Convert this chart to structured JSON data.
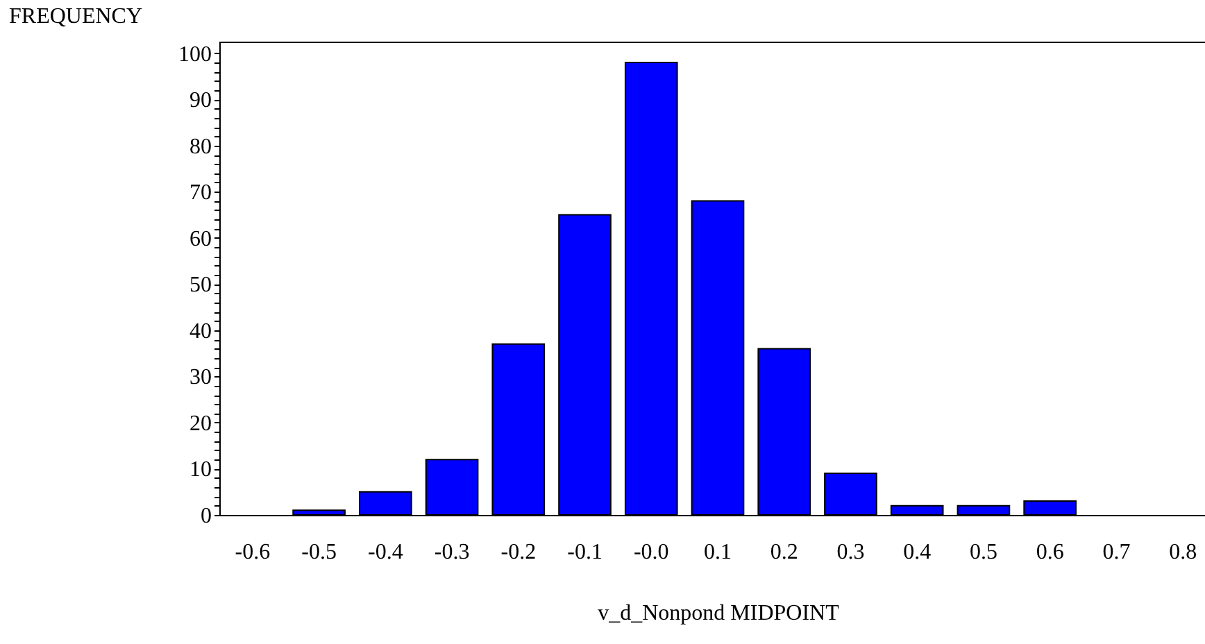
{
  "chart_data": {
    "type": "bar",
    "xlabel": "v_d_Nonpond MIDPOINT",
    "ylabel": "FREQUENCY",
    "categories": [
      "-0.6",
      "-0.5",
      "-0.4",
      "-0.3",
      "-0.2",
      "-0.1",
      "-0.0",
      "0.1",
      "0.2",
      "0.3",
      "0.4",
      "0.5",
      "0.6",
      "0.7",
      "0.8"
    ],
    "values": [
      0,
      1,
      5,
      12,
      37,
      65,
      98,
      68,
      36,
      9,
      2,
      2,
      3,
      0,
      0
    ],
    "color": "#0000ff",
    "ylim": [
      0,
      102.5
    ],
    "yticks": [
      0,
      {
        "value": 2,
        "label": null
      },
      {
        "value": 4,
        "label": null
      },
      {
        "value": 6,
        "label": null
      },
      {
        "value": 8,
        "label": null
      },
      10,
      {
        "value": 12,
        "label": null
      },
      {
        "value": 14,
        "label": null
      },
      {
        "value": 16,
        "label": null
      },
      {
        "value": 18,
        "label": null
      },
      20,
      {
        "value": 22,
        "label": null
      },
      {
        "value": 24,
        "label": null
      },
      {
        "value": 26,
        "label": null
      },
      {
        "value": 28,
        "label": null
      },
      30,
      {
        "value": 32,
        "label": null
      },
      {
        "value": 34,
        "label": null
      },
      {
        "value": 36,
        "label": null
      },
      {
        "value": 38,
        "label": null
      },
      40,
      {
        "value": 42,
        "label": null
      },
      {
        "value": 44,
        "label": null
      },
      {
        "value": 46,
        "label": null
      },
      {
        "value": 48,
        "label": null
      },
      50,
      {
        "value": 52,
        "label": null
      },
      {
        "value": 54,
        "label": null
      },
      {
        "value": 56,
        "label": null
      },
      {
        "value": 58,
        "label": null
      },
      60,
      {
        "value": 62,
        "label": null
      },
      {
        "value": 64,
        "label": null
      },
      {
        "value": 66,
        "label": null
      },
      {
        "value": 68,
        "label": null
      },
      70,
      {
        "value": 72,
        "label": null
      },
      {
        "value": 74,
        "label": null
      },
      {
        "value": 76,
        "label": null
      },
      {
        "value": 78,
        "label": null
      },
      80,
      {
        "value": 82,
        "label": null
      },
      {
        "value": 84,
        "label": null
      },
      {
        "value": 86,
        "label": null
      },
      {
        "value": 88,
        "label": null
      },
      90,
      {
        "value": 92,
        "label": null
      },
      {
        "value": 94,
        "label": null
      },
      {
        "value": 96,
        "label": null
      },
      {
        "value": 98,
        "label": null
      },
      100
    ],
    "grid": false
  }
}
